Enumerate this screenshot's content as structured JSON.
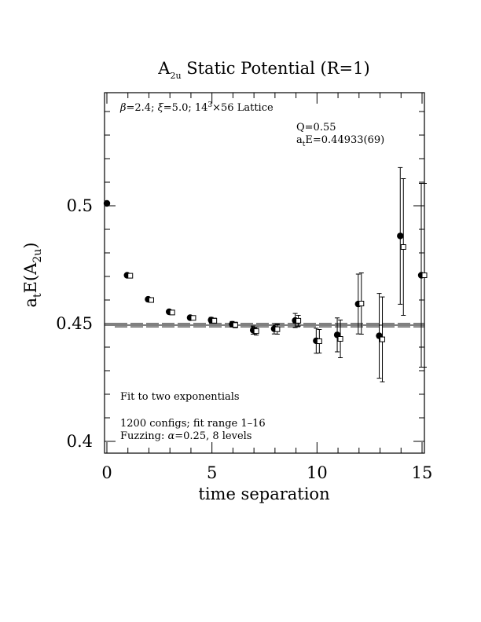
{
  "chart_data": {
    "type": "scatter",
    "title": {
      "main": "A",
      "sub": "2u",
      "rest": " Static Potential (R=1)"
    },
    "xlabel": "time separation",
    "ylabel": {
      "a": "a",
      "a_sub": "t",
      "mid": "E(A",
      "sub": "2u",
      "end": ")"
    },
    "xlim": [
      0,
      15
    ],
    "ylim": [
      0.395,
      0.548
    ],
    "xticks": [
      0,
      5,
      10,
      15
    ],
    "yticks": [
      0.4,
      0.45,
      0.5
    ],
    "xtick_labels": [
      "0",
      "5",
      "10",
      "15"
    ],
    "ytick_labels": [
      "0.4",
      "0.45",
      "0.5"
    ],
    "annotations": {
      "lattice": {
        "beta": "β",
        "rest1": "=2.4; ",
        "xi": "ξ",
        "rest2": "=5.0; 14",
        "sup": "3",
        "rest3": "×56 Lattice"
      },
      "q": "Q=0.55",
      "energy": {
        "a": "a",
        "sub": "t",
        "rest": "E=0.44933(69)"
      },
      "fit": "Fit to two exponentials",
      "configs": "1200 configs; fit range 1–16",
      "fuzzing": {
        "pre": "Fuzzing: ",
        "alpha": "α",
        "post": "=0.25, 8 levels"
      }
    },
    "fit_line": {
      "value": 0.44933,
      "error": 0.00069
    },
    "series": [
      {
        "marker": "filled-circle",
        "points": [
          {
            "x": 0,
            "y": 0.501,
            "err": 0.0004
          },
          {
            "x": 1,
            "y": 0.4705,
            "err": 0.0005
          },
          {
            "x": 2,
            "y": 0.4603,
            "err": 0.0006
          },
          {
            "x": 3,
            "y": 0.455,
            "err": 0.0007
          },
          {
            "x": 4,
            "y": 0.4525,
            "err": 0.0009
          },
          {
            "x": 5,
            "y": 0.4515,
            "err": 0.0011
          },
          {
            "x": 6,
            "y": 0.4497,
            "err": 0.0012
          },
          {
            "x": 7,
            "y": 0.4472,
            "err": 0.0017
          },
          {
            "x": 8,
            "y": 0.4478,
            "err": 0.0022
          },
          {
            "x": 9,
            "y": 0.4513,
            "err": 0.003
          },
          {
            "x": 10,
            "y": 0.4427,
            "err": 0.0053
          },
          {
            "x": 11,
            "y": 0.4452,
            "err": 0.0072
          },
          {
            "x": 12,
            "y": 0.4583,
            "err": 0.0127
          },
          {
            "x": 13,
            "y": 0.4448,
            "err": 0.018
          },
          {
            "x": 14,
            "y": 0.4872,
            "err": 0.029
          },
          {
            "x": 15,
            "y": 0.4705,
            "err": 0.039
          }
        ]
      },
      {
        "marker": "open-square",
        "points": [
          {
            "x": 1,
            "y": 0.4703,
            "err": 0.0005
          },
          {
            "x": 2,
            "y": 0.46,
            "err": 0.0006
          },
          {
            "x": 3,
            "y": 0.4547,
            "err": 0.0007
          },
          {
            "x": 4,
            "y": 0.4524,
            "err": 0.0009
          },
          {
            "x": 5,
            "y": 0.4512,
            "err": 0.0011
          },
          {
            "x": 6,
            "y": 0.4494,
            "err": 0.0012
          },
          {
            "x": 7,
            "y": 0.4468,
            "err": 0.0017
          },
          {
            "x": 8,
            "y": 0.4476,
            "err": 0.0021
          },
          {
            "x": 9,
            "y": 0.4512,
            "err": 0.0023
          },
          {
            "x": 10,
            "y": 0.4425,
            "err": 0.005
          },
          {
            "x": 11,
            "y": 0.4435,
            "err": 0.008
          },
          {
            "x": 12,
            "y": 0.4585,
            "err": 0.013
          },
          {
            "x": 13,
            "y": 0.4433,
            "err": 0.018
          },
          {
            "x": 14,
            "y": 0.4825,
            "err": 0.029
          },
          {
            "x": 15,
            "y": 0.4705,
            "err": 0.039
          }
        ]
      }
    ]
  }
}
